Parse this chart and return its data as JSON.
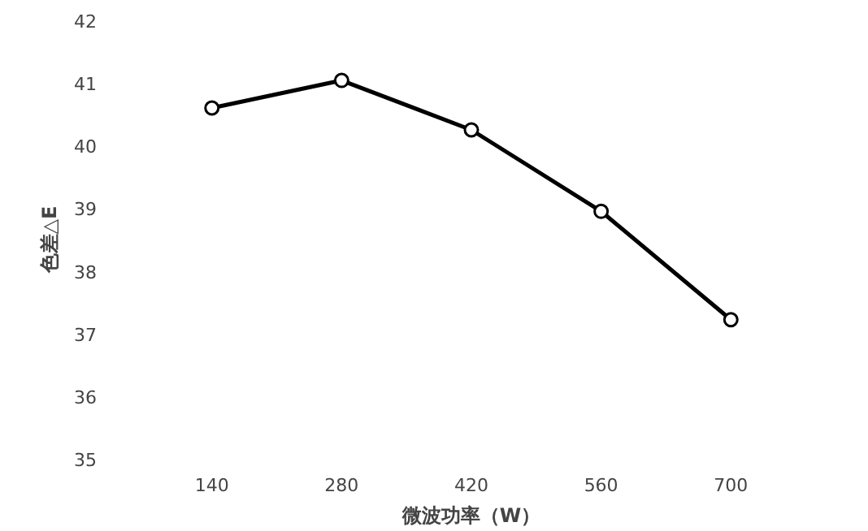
{
  "chart_data": {
    "type": "line",
    "xlabel": "微波功率（W）",
    "ylabel": "色差△E",
    "categories": [
      "140",
      "280",
      "420",
      "560",
      "700"
    ],
    "series": [
      {
        "color": "#000000",
        "values": [
          40.6,
          41.04,
          40.25,
          38.95,
          37.22
        ]
      }
    ],
    "ylim": [
      35,
      42
    ],
    "yticks": [
      35,
      36,
      37,
      38,
      39,
      40,
      41,
      42
    ],
    "grid": false,
    "marker": "circle",
    "line_style": "solid"
  }
}
